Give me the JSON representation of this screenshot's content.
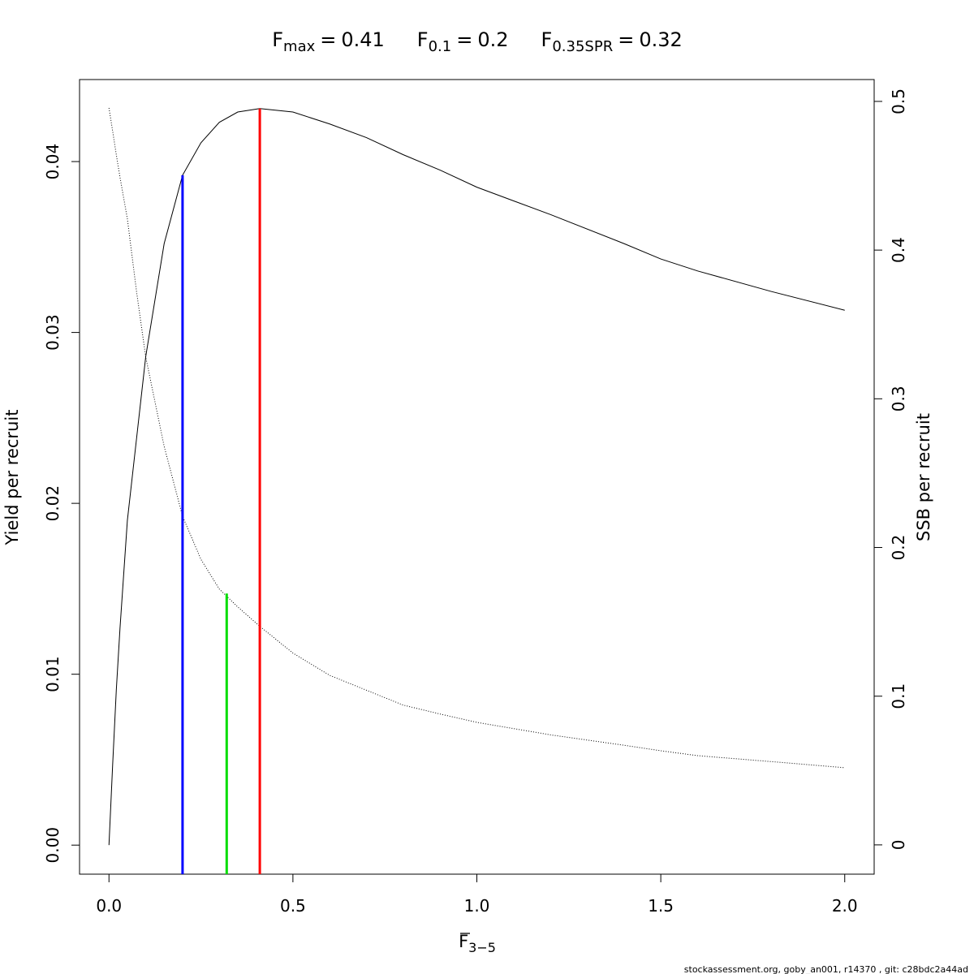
{
  "chart_data": {
    "type": "line",
    "title_parts": [
      {
        "symbol": "F",
        "subscript": "max",
        "operator": "=",
        "value": 0.41
      },
      {
        "symbol": "F",
        "subscript": "0.1",
        "operator": "=",
        "value": 0.2
      },
      {
        "symbol": "F",
        "subscript": "0.35SPR",
        "operator": "=",
        "value": 0.32
      }
    ],
    "reference_lines": [
      {
        "x_ref": "chart_data.title_parts.0.value",
        "top": 0.0431,
        "axis": "y",
        "color": "#ff0000"
      },
      {
        "x_ref": "chart_data.title_parts.1.value",
        "top": 0.0392,
        "axis": "y",
        "color": "#0000ff"
      },
      {
        "x_ref": "chart_data.title_parts.2.value",
        "top": 0.169,
        "axis": "y2",
        "color": "#00dd00"
      }
    ],
    "xlabel": {
      "symbol": "F",
      "subscript": "3−5"
    },
    "ylabel": "Yield per recruit",
    "y2label": "SSB per recruit",
    "footer": "stockassessment.org, goby_an001, r14370 , git: c28bdc2a44ad",
    "x": [
      0,
      0.01,
      0.02,
      0.03,
      0.05,
      0.075,
      0.1,
      0.15,
      0.2,
      0.25,
      0.3,
      0.35,
      0.41,
      0.5,
      0.6,
      0.7,
      0.8,
      0.9,
      1.0,
      1.2,
      1.4,
      1.5,
      1.6,
      1.8,
      2.0
    ],
    "series": [
      {
        "color": "#000000",
        "linestyle": "solid",
        "axis": "y",
        "values": [
          0,
          0.0047,
          0.0091,
          0.0127,
          0.019,
          0.0238,
          0.0286,
          0.0352,
          0.0392,
          0.0411,
          0.0423,
          0.0429,
          0.0431,
          0.0429,
          0.0422,
          0.0414,
          0.0404,
          0.0395,
          0.0385,
          0.0369,
          0.0352,
          0.0343,
          0.0336,
          0.0324,
          0.0313
        ]
      },
      {
        "color": "#000000",
        "linestyle": "dotted",
        "axis": "y2",
        "values": [
          0.4956,
          0.48,
          0.464,
          0.449,
          0.421,
          0.372,
          0.328,
          0.268,
          0.221,
          0.192,
          0.172,
          0.16,
          0.147,
          0.129,
          0.114,
          0.104,
          0.094,
          0.088,
          0.0824,
          0.074,
          0.067,
          0.0633,
          0.06,
          0.056,
          0.0519
        ]
      }
    ],
    "xlim": [
      -0.08,
      2.08
    ],
    "xticks": [
      {
        "value": 0,
        "label": "0.0"
      },
      {
        "value": 0.5,
        "label": "0.5"
      },
      {
        "value": 1,
        "label": "1.0"
      },
      {
        "value": 1.5,
        "label": "1.5"
      },
      {
        "value": 2,
        "label": "2.0"
      }
    ],
    "ylim": [
      -0.0017,
      0.0448
    ],
    "yticks": [
      {
        "value": 0,
        "label": "0.00"
      },
      0.01,
      0.02,
      0.03,
      0.04
    ],
    "y2lim": [
      -0.0197,
      0.5147
    ],
    "y2ticks": [
      0,
      0.1,
      0.2,
      0.3,
      0.4,
      0.5
    ]
  }
}
